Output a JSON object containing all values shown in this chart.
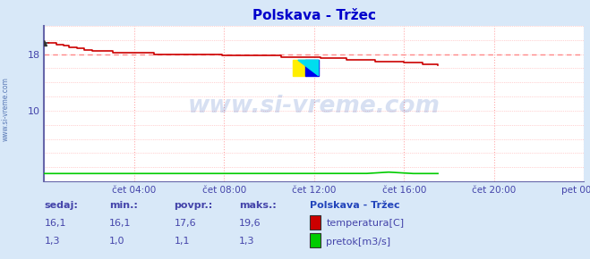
{
  "title": "Polskava - Tržec",
  "bg_color": "#d8e8f8",
  "plot_bg_color": "#ffffff",
  "grid_color_h": "#ffaaaa",
  "grid_color_v": "#ffaaaa",
  "title_color": "#0000cc",
  "tick_label_color": "#4444aa",
  "spine_color": "#6666aa",
  "temp_color": "#cc0000",
  "temp_start_color": "#333333",
  "flow_color": "#00cc00",
  "dashed_line_value": 18.0,
  "dashed_line_color": "#ff8888",
  "watermark_text": "www.si-vreme.com",
  "watermark_color": "#2255bb",
  "watermark_alpha": 0.18,
  "left_text": "www.si-vreme.com",
  "left_text_color": "#4466aa",
  "bottom_label_color": "#4444aa",
  "legend_title": "Polskava - Tržec",
  "legend_title_color": "#2244bb",
  "sedaj_label": "sedaj:",
  "min_label": "min.:",
  "povpr_label": "povpr.:",
  "maks_label": "maks.:",
  "temp_sedaj": "16,1",
  "temp_min": "16,1",
  "temp_povpr": "17,6",
  "temp_maks": "19,6",
  "flow_sedaj": "1,3",
  "flow_min": "1,0",
  "flow_povpr": "1,1",
  "flow_maks": "1,3",
  "legend_temp": "temperatura[C]",
  "legend_flow": "pretok[m3/s]",
  "xticklabels": [
    "čet 04:00",
    "čet 08:00",
    "čet 12:00",
    "čet 16:00",
    "čet 20:00",
    "pet 00:00"
  ],
  "xtick_positions": [
    4,
    8,
    12,
    16,
    20,
    24
  ],
  "xlim": [
    0,
    24
  ],
  "ylim": [
    0,
    22
  ],
  "ytick_positions": [
    10,
    18
  ],
  "yticklabels": [
    "10",
    "18"
  ],
  "n_points": 289,
  "data_end_hour": 17.5
}
